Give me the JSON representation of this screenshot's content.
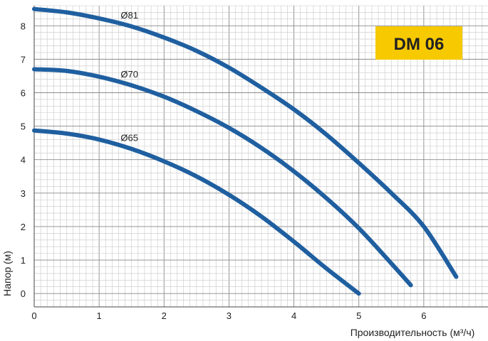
{
  "chart_data": {
    "type": "line",
    "title": "",
    "badge": "DM 06",
    "badge_color": "#f7c900",
    "line_color": "#1f5fa0",
    "xlabel": "Производительность (м³/ч)",
    "ylabel": "Напор (м)",
    "xlim": [
      0,
      7
    ],
    "ylim": [
      -0.4,
      8.6
    ],
    "xticks": [
      "0",
      "1",
      "2",
      "3",
      "4",
      "5",
      "6"
    ],
    "yticks": [
      "0",
      "1",
      "2",
      "3",
      "4",
      "5",
      "6",
      "7",
      "8"
    ],
    "grid": true,
    "series": [
      {
        "name": "Ø81",
        "x": [
          0,
          0.5,
          1.0,
          1.5,
          2.0,
          2.5,
          3.0,
          3.5,
          4.0,
          4.5,
          5.0,
          5.5,
          6.0,
          6.5
        ],
        "y": [
          8.5,
          8.4,
          8.22,
          7.98,
          7.65,
          7.25,
          6.75,
          6.15,
          5.5,
          4.75,
          3.9,
          3.0,
          2.0,
          0.5
        ]
      },
      {
        "name": "Ø70",
        "x": [
          0,
          0.5,
          1.0,
          1.5,
          2.0,
          2.5,
          3.0,
          3.5,
          4.0,
          4.5,
          5.0,
          5.5,
          5.8
        ],
        "y": [
          6.7,
          6.65,
          6.48,
          6.22,
          5.88,
          5.45,
          4.95,
          4.35,
          3.65,
          2.85,
          1.95,
          0.9,
          0.25
        ]
      },
      {
        "name": "Ø65",
        "x": [
          0,
          0.5,
          1.0,
          1.5,
          2.0,
          2.5,
          3.0,
          3.5,
          4.0,
          4.5,
          5.0
        ],
        "y": [
          4.87,
          4.78,
          4.6,
          4.32,
          3.95,
          3.5,
          2.95,
          2.3,
          1.55,
          0.75,
          0.0
        ]
      }
    ]
  }
}
